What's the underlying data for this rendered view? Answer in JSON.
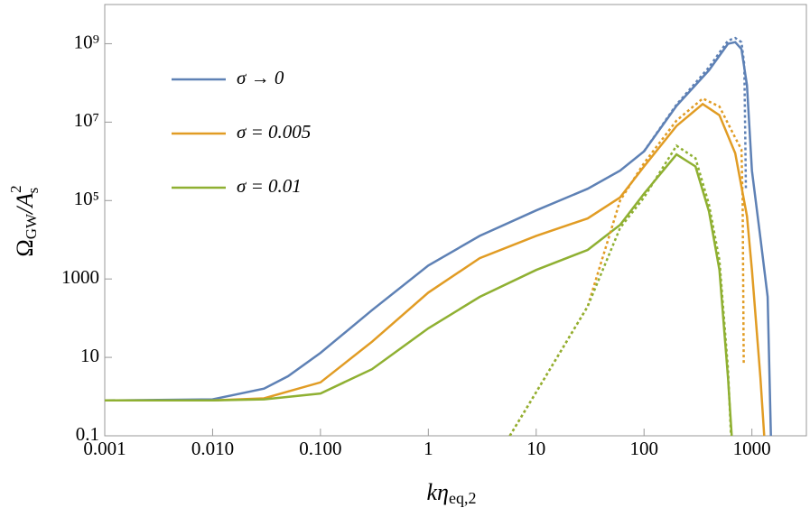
{
  "chart_data": {
    "type": "line",
    "xlabel": [
      "kη",
      "eq,2"
    ],
    "ylabel": [
      "Ω",
      "GW",
      "/A",
      "2",
      "s"
    ],
    "xscale": "log",
    "yscale": "log",
    "xlim": [
      0.001,
      3200
    ],
    "ylim": [
      0.1,
      10000000000
    ],
    "xticks": [
      0.001,
      {
        "value": 0.01,
        "label": "0.010"
      },
      {
        "value": 0.1,
        "label": "0.100"
      },
      1,
      10,
      100,
      1000
    ],
    "yticks": [
      0.1,
      10,
      1000,
      {
        "value": 100000,
        "label": "10⁵"
      },
      {
        "value": 10000000,
        "label": "10⁷"
      },
      {
        "value": 1000000000,
        "label": "10⁹"
      }
    ],
    "legend": "top-left",
    "series": [
      {
        "name": "σ → 0",
        "color": "#5e81b5",
        "style": "solid",
        "x": [
          0.001,
          0.01,
          0.03,
          0.05,
          0.1,
          0.3,
          1,
          3,
          10,
          30,
          60,
          100,
          200,
          400,
          600,
          700,
          800,
          900,
          1000,
          1200,
          1400,
          1500
        ],
        "values": [
          0.8,
          0.85,
          1.6,
          3.3,
          13,
          160,
          2200,
          12600,
          56000,
          200000,
          580000,
          1800000,
          26000000,
          210000000,
          1000000000,
          1100000000,
          730000000,
          87000000,
          580000,
          11000,
          350,
          0.1
        ]
      },
      {
        "name": "σ = 0.005",
        "color": "#e19c24",
        "style": "solid",
        "x": [
          0.001,
          0.01,
          0.03,
          0.05,
          0.1,
          0.3,
          1,
          3,
          10,
          30,
          60,
          100,
          200,
          350,
          500,
          700,
          900,
          1000,
          1200,
          1300
        ],
        "values": [
          0.8,
          0.8,
          0.9,
          1.35,
          2.3,
          25,
          450,
          3400,
          12600,
          35000,
          120000,
          740000,
          8000000,
          29000000,
          15000000,
          1600000,
          40000,
          1700,
          3,
          0.1
        ]
      },
      {
        "name": "σ = 0.01",
        "color": "#8fb032",
        "style": "solid",
        "x": [
          0.001,
          0.01,
          0.03,
          0.1,
          0.3,
          1,
          3,
          10,
          30,
          60,
          100,
          200,
          300,
          400,
          500,
          600,
          650
        ],
        "values": [
          0.8,
          0.8,
          0.85,
          1.2,
          5,
          55,
          350,
          1700,
          5500,
          24000,
          150000,
          1500000,
          740000,
          53000,
          1700,
          3,
          0.1
        ]
      },
      {
        "color": "#5e81b5",
        "style": "dotted",
        "x": [
          100,
          200,
          400,
          600,
          700,
          800,
          850,
          870,
          880
        ],
        "values": [
          1800000,
          28000000,
          250000000,
          1200000000,
          1400000000,
          1100000000,
          300000000,
          3000000,
          200000
        ]
      },
      {
        "color": "#e19c24",
        "style": "dotted",
        "x": [
          5.7,
          10,
          30,
          60,
          100,
          200,
          350,
          500,
          700,
          800,
          820,
          830,
          840
        ],
        "values": [
          0.1,
          1.3,
          200,
          100000,
          900000,
          11000000,
          40000000,
          25000000,
          4000000,
          2000000,
          100000,
          1000,
          7
        ]
      },
      {
        "color": "#8fb032",
        "style": "dotted",
        "x": [
          5.7,
          10,
          30,
          60,
          100,
          200,
          300,
          400,
          500,
          600,
          640
        ],
        "values": [
          0.1,
          1.3,
          200,
          20000,
          120000,
          2500000,
          1200000,
          80000,
          3000,
          5,
          0.1
        ]
      }
    ]
  }
}
